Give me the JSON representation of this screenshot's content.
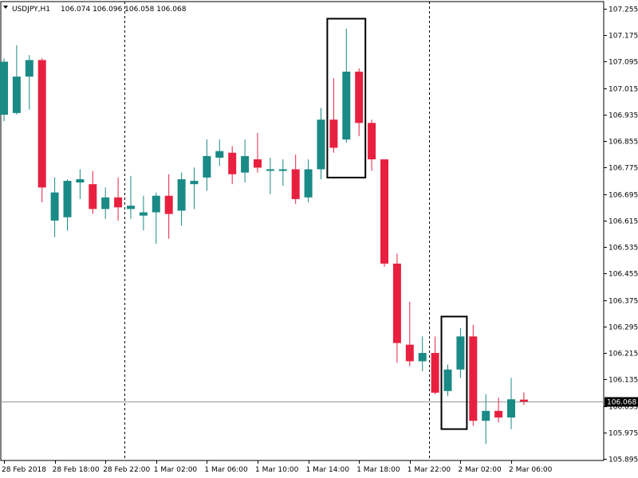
{
  "header": {
    "symbol": "USDJPY,H1",
    "ohlc": "106.074 106.096 106.058 106.068"
  },
  "colors": {
    "bull": "#1a8a86",
    "bear": "#e8203f",
    "wick": "#1a8a86",
    "wick_bear": "#e8203f",
    "current_line": "#8f9a9a",
    "frame": "#000000",
    "separator": "#000000",
    "price_tag_bg": "#000000",
    "price_tag_fg": "#ffffff"
  },
  "chart_data": {
    "type": "candlestick",
    "symbol": "USDJPY",
    "timeframe": "H1",
    "ylim": [
      105.895,
      107.255
    ],
    "y_ticks": [
      "107.255",
      "107.175",
      "107.095",
      "107.015",
      "106.935",
      "106.855",
      "106.775",
      "106.695",
      "106.615",
      "106.535",
      "106.455",
      "106.375",
      "106.295",
      "106.215",
      "106.135",
      "106.055",
      "105.975",
      "105.895"
    ],
    "current_price": "106.068",
    "x_labels": [
      {
        "index": 0,
        "label": "28 Feb 2018"
      },
      {
        "index": 4,
        "label": "28 Feb 18:00"
      },
      {
        "index": 8,
        "label": "28 Feb 22:00"
      },
      {
        "index": 12,
        "label": "1 Mar 02:00"
      },
      {
        "index": 16,
        "label": "1 Mar 06:00"
      },
      {
        "index": 20,
        "label": "1 Mar 10:00"
      },
      {
        "index": 24,
        "label": "1 Mar 14:00"
      },
      {
        "index": 28,
        "label": "1 Mar 18:00"
      },
      {
        "index": 32,
        "label": "1 Mar 22:00"
      },
      {
        "index": 36,
        "label": "2 Mar 02:00"
      },
      {
        "index": 40,
        "label": "2 Mar 06:00"
      }
    ],
    "day_separators_after_index": [
      9.5,
      33.5
    ],
    "highlight_boxes": [
      {
        "from_index": 26,
        "to_index": 28,
        "low": 106.745,
        "high": 107.225
      },
      {
        "from_index": 35,
        "to_index": 36,
        "low": 105.985,
        "high": 106.325
      }
    ],
    "candles": [
      {
        "o": 106.935,
        "h": 107.105,
        "l": 106.915,
        "c": 107.095
      },
      {
        "o": 106.94,
        "h": 107.145,
        "l": 106.935,
        "c": 107.05
      },
      {
        "o": 107.05,
        "h": 107.115,
        "l": 106.95,
        "c": 107.1
      },
      {
        "o": 107.1,
        "h": 107.105,
        "l": 106.67,
        "c": 106.715
      },
      {
        "o": 106.615,
        "h": 106.745,
        "l": 106.565,
        "c": 106.7
      },
      {
        "o": 106.625,
        "h": 106.74,
        "l": 106.585,
        "c": 106.735
      },
      {
        "o": 106.73,
        "h": 106.77,
        "l": 106.68,
        "c": 106.74
      },
      {
        "o": 106.725,
        "h": 106.765,
        "l": 106.635,
        "c": 106.65
      },
      {
        "o": 106.65,
        "h": 106.715,
        "l": 106.62,
        "c": 106.685
      },
      {
        "o": 106.685,
        "h": 106.745,
        "l": 106.615,
        "c": 106.655
      },
      {
        "o": 106.65,
        "h": 106.75,
        "l": 106.62,
        "c": 106.66
      },
      {
        "o": 106.63,
        "h": 106.69,
        "l": 106.585,
        "c": 106.64
      },
      {
        "o": 106.64,
        "h": 106.7,
        "l": 106.545,
        "c": 106.69
      },
      {
        "o": 106.69,
        "h": 106.755,
        "l": 106.56,
        "c": 106.635
      },
      {
        "o": 106.645,
        "h": 106.76,
        "l": 106.6,
        "c": 106.74
      },
      {
        "o": 106.725,
        "h": 106.775,
        "l": 106.65,
        "c": 106.735
      },
      {
        "o": 106.745,
        "h": 106.86,
        "l": 106.705,
        "c": 106.81
      },
      {
        "o": 106.805,
        "h": 106.86,
        "l": 106.78,
        "c": 106.825
      },
      {
        "o": 106.82,
        "h": 106.84,
        "l": 106.725,
        "c": 106.755
      },
      {
        "o": 106.76,
        "h": 106.86,
        "l": 106.73,
        "c": 106.81
      },
      {
        "o": 106.8,
        "h": 106.88,
        "l": 106.76,
        "c": 106.775
      },
      {
        "o": 106.77,
        "h": 106.805,
        "l": 106.695,
        "c": 106.77
      },
      {
        "o": 106.765,
        "h": 106.8,
        "l": 106.72,
        "c": 106.77
      },
      {
        "o": 106.77,
        "h": 106.815,
        "l": 106.665,
        "c": 106.68
      },
      {
        "o": 106.685,
        "h": 106.8,
        "l": 106.67,
        "c": 106.77
      },
      {
        "o": 106.77,
        "h": 106.955,
        "l": 106.74,
        "c": 106.92
      },
      {
        "o": 106.92,
        "h": 107.045,
        "l": 106.82,
        "c": 106.835
      },
      {
        "o": 106.86,
        "h": 107.195,
        "l": 106.85,
        "c": 107.065
      },
      {
        "o": 107.065,
        "h": 107.075,
        "l": 106.87,
        "c": 106.91
      },
      {
        "o": 106.91,
        "h": 106.92,
        "l": 106.765,
        "c": 106.8
      },
      {
        "o": 106.8,
        "h": 106.8,
        "l": 106.475,
        "c": 106.485
      },
      {
        "o": 106.485,
        "h": 106.515,
        "l": 106.185,
        "c": 106.245
      },
      {
        "o": 106.24,
        "h": 106.37,
        "l": 106.175,
        "c": 106.19
      },
      {
        "o": 106.19,
        "h": 106.265,
        "l": 106.16,
        "c": 106.215
      },
      {
        "o": 106.215,
        "h": 106.265,
        "l": 106.09,
        "c": 106.095
      },
      {
        "o": 106.1,
        "h": 106.18,
        "l": 106.085,
        "c": 106.165
      },
      {
        "o": 106.165,
        "h": 106.29,
        "l": 106.14,
        "c": 106.265
      },
      {
        "o": 106.265,
        "h": 106.3,
        "l": 105.995,
        "c": 106.01
      },
      {
        "o": 106.01,
        "h": 106.09,
        "l": 105.94,
        "c": 106.04
      },
      {
        "o": 106.04,
        "h": 106.08,
        "l": 106.005,
        "c": 106.02
      },
      {
        "o": 106.02,
        "h": 106.14,
        "l": 105.985,
        "c": 106.075
      },
      {
        "o": 106.074,
        "h": 106.096,
        "l": 106.058,
        "c": 106.068
      }
    ]
  }
}
